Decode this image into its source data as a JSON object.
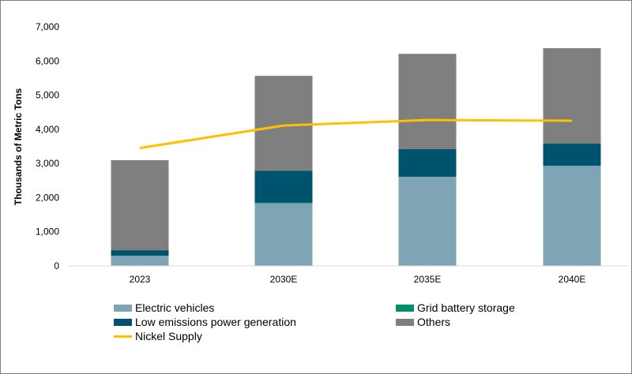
{
  "chart_data": {
    "type": "bar",
    "stacked": true,
    "categories": [
      "2023",
      "2030E",
      "2035E",
      "2040E"
    ],
    "ylabel": "Thousands of Metric Tons",
    "ylim": [
      0,
      7000
    ],
    "yticks": [
      "0",
      "1,000",
      "2,000",
      "3,000",
      "4,000",
      "5,000",
      "6,000",
      "7,000"
    ],
    "ytick_values": [
      0,
      1000,
      2000,
      3000,
      4000,
      5000,
      6000,
      7000
    ],
    "grid": false,
    "legend_position": "bottom",
    "series": [
      {
        "name": "Electric vehicles",
        "type": "bar",
        "color": "#7fa5b5",
        "values": [
          300,
          1830,
          2610,
          2930
        ]
      },
      {
        "name": "Grid battery storage",
        "type": "bar",
        "color": "#00906a",
        "values": [
          0,
          20,
          0,
          0
        ]
      },
      {
        "name": "Low emissions power generation",
        "type": "bar",
        "color": "#00536e",
        "values": [
          160,
          940,
          810,
          650
        ]
      },
      {
        "name": "Others",
        "type": "bar",
        "color": "#7f7f7f",
        "values": [
          2635,
          2775,
          2790,
          2795
        ]
      },
      {
        "name": "Nickel Supply",
        "type": "line",
        "color": "#ffc000",
        "values": [
          3450,
          4110,
          4270,
          4250
        ]
      }
    ]
  }
}
